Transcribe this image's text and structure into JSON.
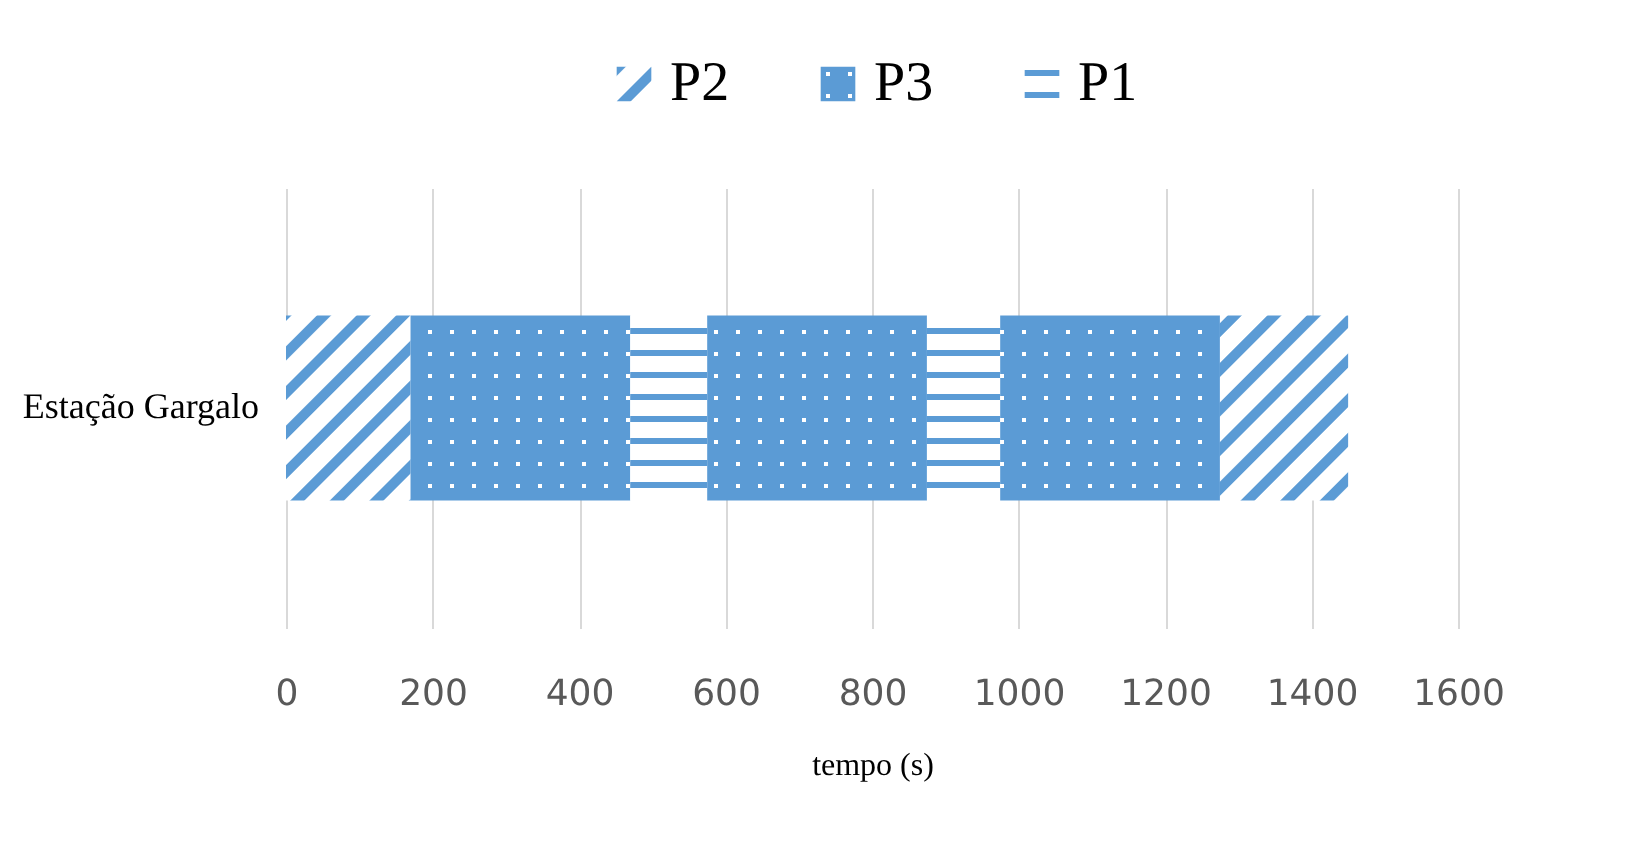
{
  "chart_data": {
    "type": "bar",
    "orientation": "horizontal",
    "stacked": true,
    "categories": [
      "Estação Gargalo"
    ],
    "xlabel": "tempo (s)",
    "xlim": [
      0,
      1600
    ],
    "xticks": [
      0,
      200,
      400,
      600,
      800,
      1000,
      1200,
      1400,
      1600
    ],
    "grid": "x",
    "legend": "top",
    "series": [
      {
        "name": "P2",
        "color": "#5b9bd5",
        "values": [
          170
        ]
      },
      {
        "name": "P3",
        "color": "#5b9bd5",
        "values": [
          300
        ]
      },
      {
        "name": "P1",
        "color": "#5b9bd5",
        "values": [
          105
        ]
      },
      {
        "color": "#5b9bd5",
        "values": [
          300
        ]
      },
      {
        "color": "#5b9bd5",
        "values": [
          100
        ]
      },
      {
        "color": "#5b9bd5",
        "values": [
          300
        ]
      },
      {
        "color": "#5b9bd5",
        "values": [
          175
        ]
      }
    ]
  }
}
